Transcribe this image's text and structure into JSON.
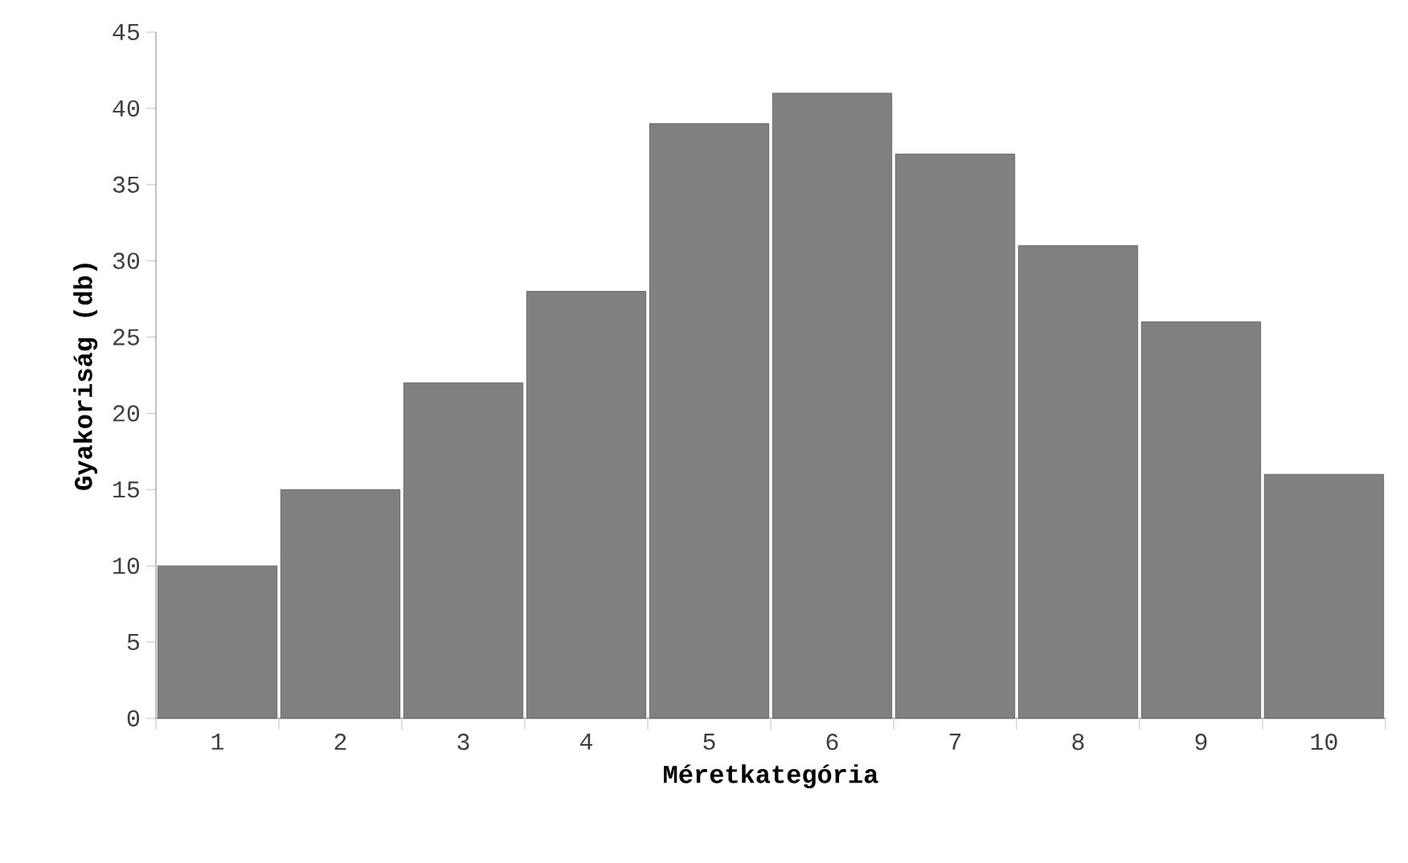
{
  "chart_data": {
    "type": "bar",
    "xlabel": "Méretkategória",
    "ylabel": "Gyakoriság (db)",
    "categories": [
      "1",
      "2",
      "3",
      "4",
      "5",
      "6",
      "7",
      "8",
      "9",
      "10"
    ],
    "values": [
      10,
      15,
      22,
      28,
      39,
      41,
      37,
      31,
      26,
      16
    ],
    "color": "#808080",
    "ylim": [
      0,
      45
    ],
    "yticks": [
      0,
      5,
      10,
      15,
      20,
      25,
      30,
      35,
      40,
      45
    ]
  }
}
